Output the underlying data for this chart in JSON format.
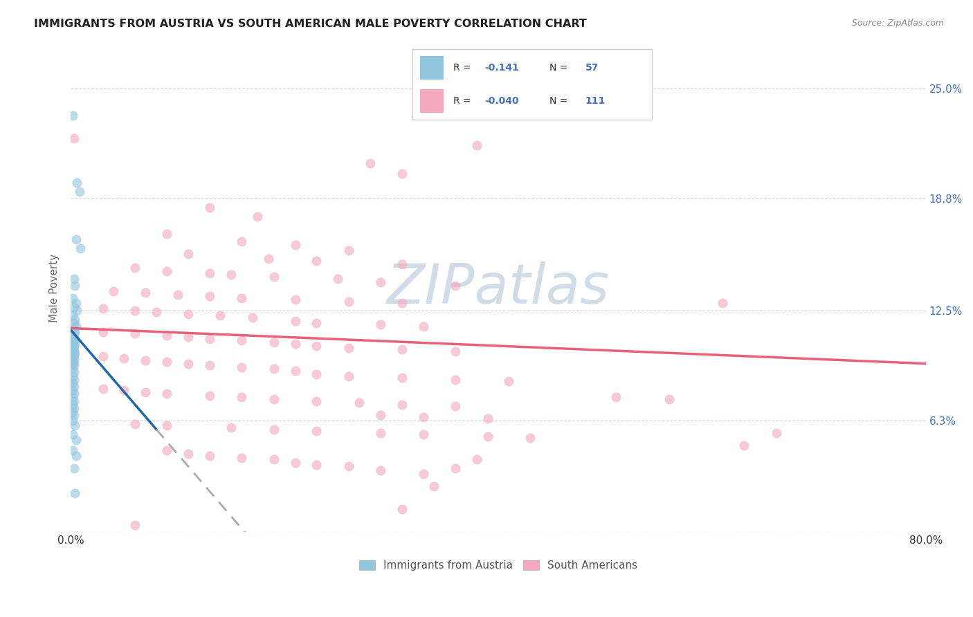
{
  "title": "IMMIGRANTS FROM AUSTRIA VS SOUTH AMERICAN MALE POVERTY CORRELATION CHART",
  "source": "Source: ZipAtlas.com",
  "ylabel": "Male Poverty",
  "xlim": [
    0.0,
    0.8
  ],
  "ylim": [
    0.0,
    0.275
  ],
  "austria_R": -0.141,
  "austria_N": 57,
  "sa_R": -0.04,
  "sa_N": 111,
  "austria_color": "#92c5de",
  "sa_color": "#f4a8bc",
  "austria_edge_color": "#5a9dc8",
  "sa_edge_color": "#e87da0",
  "austria_line_color": "#2166ac",
  "sa_line_color": "#e8607a",
  "watermark_color": "#d0dce8",
  "watermark_text": "ZIPatlas",
  "ytick_vals": [
    0.0,
    0.063,
    0.125,
    0.188,
    0.25
  ],
  "ytick_labels": [
    "",
    "6.3%",
    "12.5%",
    "18.8%",
    "25.0%"
  ],
  "austria_line_x0": 0.0,
  "austria_line_x1": 0.08,
  "austria_line_x2": 0.5,
  "austria_line_y_intercept": 0.114,
  "austria_line_slope": -0.7,
  "sa_line_x0": 0.0,
  "sa_line_x1": 0.8,
  "sa_line_y_intercept": 0.115,
  "sa_line_slope": -0.025,
  "austria_scatter": [
    [
      0.002,
      0.235
    ],
    [
      0.006,
      0.197
    ],
    [
      0.008,
      0.192
    ],
    [
      0.005,
      0.165
    ],
    [
      0.009,
      0.16
    ],
    [
      0.003,
      0.143
    ],
    [
      0.004,
      0.139
    ],
    [
      0.002,
      0.132
    ],
    [
      0.005,
      0.129
    ],
    [
      0.003,
      0.127
    ],
    [
      0.006,
      0.125
    ],
    [
      0.002,
      0.122
    ],
    [
      0.004,
      0.12
    ],
    [
      0.003,
      0.118
    ],
    [
      0.005,
      0.116
    ],
    [
      0.002,
      0.115
    ],
    [
      0.004,
      0.113
    ],
    [
      0.003,
      0.112
    ],
    [
      0.002,
      0.11
    ],
    [
      0.004,
      0.109
    ],
    [
      0.003,
      0.108
    ],
    [
      0.002,
      0.107
    ],
    [
      0.004,
      0.106
    ],
    [
      0.003,
      0.105
    ],
    [
      0.002,
      0.104
    ],
    [
      0.003,
      0.103
    ],
    [
      0.002,
      0.102
    ],
    [
      0.004,
      0.101
    ],
    [
      0.003,
      0.1
    ],
    [
      0.002,
      0.099
    ],
    [
      0.003,
      0.098
    ],
    [
      0.002,
      0.097
    ],
    [
      0.003,
      0.096
    ],
    [
      0.002,
      0.095
    ],
    [
      0.003,
      0.094
    ],
    [
      0.002,
      0.092
    ],
    [
      0.003,
      0.09
    ],
    [
      0.002,
      0.088
    ],
    [
      0.003,
      0.086
    ],
    [
      0.002,
      0.084
    ],
    [
      0.003,
      0.082
    ],
    [
      0.002,
      0.08
    ],
    [
      0.003,
      0.078
    ],
    [
      0.002,
      0.076
    ],
    [
      0.003,
      0.074
    ],
    [
      0.002,
      0.072
    ],
    [
      0.003,
      0.07
    ],
    [
      0.002,
      0.068
    ],
    [
      0.003,
      0.066
    ],
    [
      0.002,
      0.063
    ],
    [
      0.004,
      0.06
    ],
    [
      0.002,
      0.055
    ],
    [
      0.005,
      0.052
    ],
    [
      0.002,
      0.046
    ],
    [
      0.005,
      0.043
    ],
    [
      0.003,
      0.036
    ],
    [
      0.004,
      0.022
    ]
  ],
  "sa_scatter": [
    [
      0.003,
      0.222
    ],
    [
      0.38,
      0.218
    ],
    [
      0.28,
      0.208
    ],
    [
      0.31,
      0.202
    ],
    [
      0.13,
      0.183
    ],
    [
      0.175,
      0.178
    ],
    [
      0.09,
      0.168
    ],
    [
      0.16,
      0.164
    ],
    [
      0.21,
      0.162
    ],
    [
      0.26,
      0.159
    ],
    [
      0.11,
      0.157
    ],
    [
      0.185,
      0.154
    ],
    [
      0.23,
      0.153
    ],
    [
      0.31,
      0.151
    ],
    [
      0.06,
      0.149
    ],
    [
      0.09,
      0.147
    ],
    [
      0.13,
      0.146
    ],
    [
      0.15,
      0.145
    ],
    [
      0.19,
      0.144
    ],
    [
      0.25,
      0.143
    ],
    [
      0.29,
      0.141
    ],
    [
      0.36,
      0.139
    ],
    [
      0.04,
      0.136
    ],
    [
      0.07,
      0.135
    ],
    [
      0.1,
      0.134
    ],
    [
      0.13,
      0.133
    ],
    [
      0.16,
      0.132
    ],
    [
      0.21,
      0.131
    ],
    [
      0.26,
      0.13
    ],
    [
      0.31,
      0.129
    ],
    [
      0.03,
      0.126
    ],
    [
      0.06,
      0.125
    ],
    [
      0.08,
      0.124
    ],
    [
      0.11,
      0.123
    ],
    [
      0.14,
      0.122
    ],
    [
      0.17,
      0.121
    ],
    [
      0.21,
      0.119
    ],
    [
      0.23,
      0.118
    ],
    [
      0.29,
      0.117
    ],
    [
      0.33,
      0.116
    ],
    [
      0.61,
      0.129
    ],
    [
      0.03,
      0.113
    ],
    [
      0.06,
      0.112
    ],
    [
      0.09,
      0.111
    ],
    [
      0.11,
      0.11
    ],
    [
      0.13,
      0.109
    ],
    [
      0.16,
      0.108
    ],
    [
      0.19,
      0.107
    ],
    [
      0.21,
      0.106
    ],
    [
      0.23,
      0.105
    ],
    [
      0.26,
      0.104
    ],
    [
      0.31,
      0.103
    ],
    [
      0.36,
      0.102
    ],
    [
      0.03,
      0.099
    ],
    [
      0.05,
      0.098
    ],
    [
      0.07,
      0.097
    ],
    [
      0.09,
      0.096
    ],
    [
      0.11,
      0.095
    ],
    [
      0.13,
      0.094
    ],
    [
      0.16,
      0.093
    ],
    [
      0.19,
      0.092
    ],
    [
      0.21,
      0.091
    ],
    [
      0.23,
      0.089
    ],
    [
      0.26,
      0.088
    ],
    [
      0.31,
      0.087
    ],
    [
      0.36,
      0.086
    ],
    [
      0.41,
      0.085
    ],
    [
      0.03,
      0.081
    ],
    [
      0.05,
      0.08
    ],
    [
      0.07,
      0.079
    ],
    [
      0.09,
      0.078
    ],
    [
      0.13,
      0.077
    ],
    [
      0.16,
      0.076
    ],
    [
      0.19,
      0.075
    ],
    [
      0.23,
      0.074
    ],
    [
      0.27,
      0.073
    ],
    [
      0.31,
      0.072
    ],
    [
      0.36,
      0.071
    ],
    [
      0.29,
      0.066
    ],
    [
      0.33,
      0.065
    ],
    [
      0.39,
      0.064
    ],
    [
      0.51,
      0.076
    ],
    [
      0.56,
      0.075
    ],
    [
      0.06,
      0.061
    ],
    [
      0.09,
      0.06
    ],
    [
      0.15,
      0.059
    ],
    [
      0.19,
      0.058
    ],
    [
      0.23,
      0.057
    ],
    [
      0.29,
      0.056
    ],
    [
      0.33,
      0.055
    ],
    [
      0.39,
      0.054
    ],
    [
      0.43,
      0.053
    ],
    [
      0.66,
      0.056
    ],
    [
      0.38,
      0.041
    ],
    [
      0.36,
      0.036
    ],
    [
      0.34,
      0.026
    ],
    [
      0.63,
      0.049
    ],
    [
      0.31,
      0.013
    ],
    [
      0.06,
      0.004
    ],
    [
      0.09,
      0.046
    ],
    [
      0.11,
      0.044
    ],
    [
      0.13,
      0.043
    ],
    [
      0.16,
      0.042
    ],
    [
      0.19,
      0.041
    ],
    [
      0.21,
      0.039
    ],
    [
      0.23,
      0.038
    ],
    [
      0.26,
      0.037
    ],
    [
      0.29,
      0.035
    ],
    [
      0.33,
      0.033
    ]
  ]
}
